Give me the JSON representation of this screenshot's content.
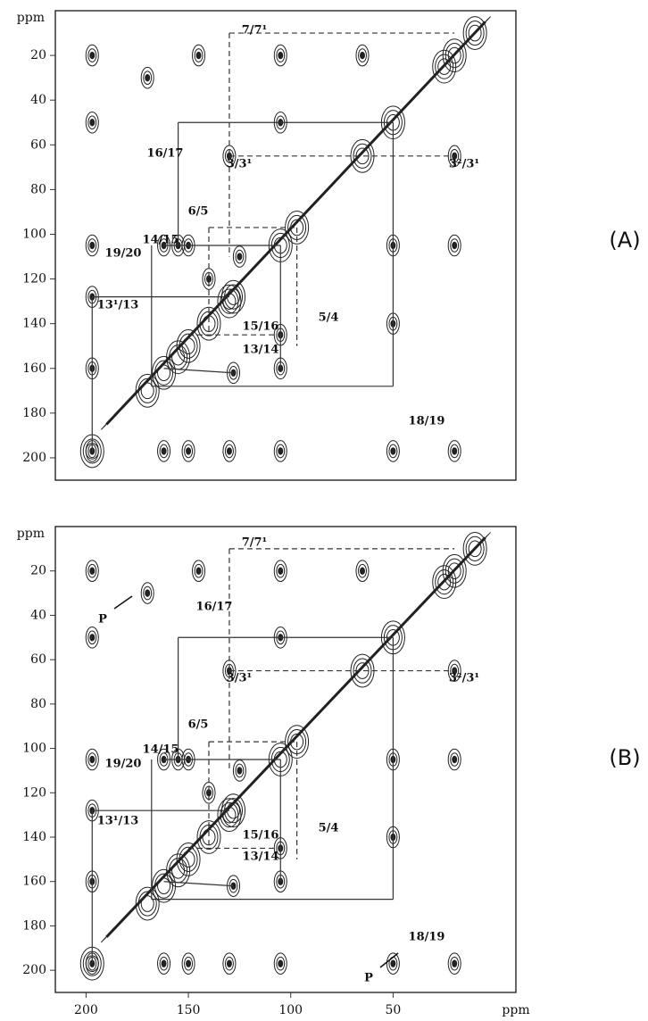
{
  "chart_data": [
    {
      "type": "contour",
      "panel_label": "(A)",
      "ylabel": "ppm",
      "xlim": [
        215,
        -10
      ],
      "ylim": [
        0,
        210
      ],
      "yticks": [
        20,
        40,
        60,
        80,
        100,
        120,
        140,
        160,
        180,
        200
      ],
      "annotations": [
        "7/7¹",
        "16/17",
        "3/3¹",
        "3²/3¹",
        "6/5",
        "14/15",
        "19/20",
        "13¹/13",
        "5/4",
        "15/16",
        "13/14",
        "18/19"
      ]
    },
    {
      "type": "contour",
      "panel_label": "(B)",
      "ylabel": "ppm",
      "xlabel": "ppm",
      "xlim": [
        215,
        -10
      ],
      "ylim": [
        0,
        210
      ],
      "xticks": [
        200,
        150,
        100,
        50
      ],
      "yticks": [
        20,
        40,
        60,
        80,
        100,
        120,
        140,
        160,
        180,
        200
      ],
      "annotations": [
        "7/7¹",
        "16/17",
        "3/3¹",
        "3²/3¹",
        "6/5",
        "14/15",
        "19/20",
        "13¹/13",
        "5/4",
        "15/16",
        "13/14",
        "18/19",
        "P",
        "P"
      ]
    }
  ]
}
